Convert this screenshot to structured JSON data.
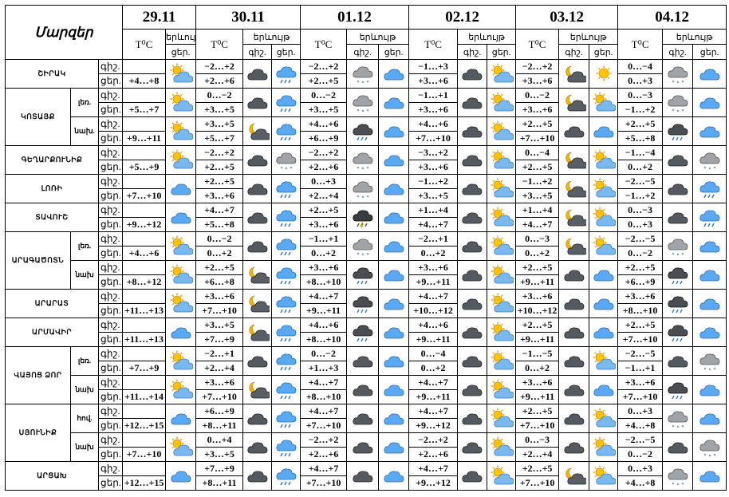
{
  "header": {
    "region_label": "Մարզեր",
    "temp_label": "T⁰C",
    "phenomenon_label": "երևույթ",
    "night_label": "գիշ.",
    "day_label": "ցեր.",
    "dates": [
      "29.11",
      "30.11",
      "01.12",
      "02.12",
      "03.12",
      "04.12"
    ]
  },
  "regions": [
    {
      "name": "ՇԻՐԱԿ",
      "zones": [
        {
          "day_first": "+4…+8",
          "temps": [
            [
              "−2…+2",
              "+2…+6"
            ],
            [
              "−2…+2",
              "+2…+5"
            ],
            [
              "−1…+3",
              "+3…+6"
            ],
            [
              "−2…+2",
              "+3…+6"
            ],
            [
              "0…−4",
              "0…+3"
            ]
          ]
        }
      ]
    },
    {
      "name": "ԿՈՏԱՅՔ",
      "zones": [
        {
          "name": "լեռ.",
          "day_first": "+5…+7",
          "temps": [
            [
              "0…−2",
              "+3…+5"
            ],
            [
              "0…−2",
              "+3…+5"
            ],
            [
              "−1…+1",
              "+3…+6"
            ],
            [
              "0…−2",
              "+3…+6"
            ],
            [
              "0…−3",
              "−1…+2"
            ]
          ]
        },
        {
          "name": "նախ.",
          "day_first": "+9…+11",
          "temps": [
            [
              "+3…+5",
              "+5…+7"
            ],
            [
              "+4…+6",
              "+6…+9"
            ],
            [
              "+4…+6",
              "+7…+10"
            ],
            [
              "+2…+5",
              "+7…+10"
            ],
            [
              "+2…+5",
              "+5…+8"
            ]
          ]
        }
      ]
    },
    {
      "name": "ԳԵՂԱՐՔՈՒՆԻՔ",
      "zones": [
        {
          "day_first": "+5…+9",
          "temps": [
            [
              "−2…+2",
              "+2…+5"
            ],
            [
              "−2…+2",
              "+2…+6"
            ],
            [
              "−3…+2",
              "+3…+6"
            ],
            [
              "0…−4",
              "+2…+5"
            ],
            [
              "−1…−4",
              "0…+2"
            ]
          ]
        }
      ]
    },
    {
      "name": "ԼՈՌԻ",
      "zones": [
        {
          "day_first": "+7…+10",
          "temps": [
            [
              "+2…+5",
              "+3…+6"
            ],
            [
              "0…+3",
              "+2…+4"
            ],
            [
              "−1…+2",
              "+3…+5"
            ],
            [
              "−1…+2",
              "+3…+5"
            ],
            [
              "−2…−5",
              "−1…+2"
            ]
          ]
        }
      ]
    },
    {
      "name": "ՏԱՎՈՒՇ",
      "zones": [
        {
          "day_first": "+9…+12",
          "temps": [
            [
              "+4…+7",
              "+5…+8"
            ],
            [
              "+2…+5",
              "+3…+6"
            ],
            [
              "+1…+4",
              "+4…+7"
            ],
            [
              "+1…+4",
              "+4…+7"
            ],
            [
              "0…−3",
              "0…+3"
            ]
          ]
        }
      ]
    },
    {
      "name": "ԱՐԱԳԱԾՈՏՆ",
      "zones": [
        {
          "name": "լեռ.",
          "day_first": "+4…+6",
          "temps": [
            [
              "0…−2",
              "0…+2"
            ],
            [
              "−1…+1",
              "0…+2"
            ],
            [
              "−2…+1",
              "0…+2"
            ],
            [
              "0…−3",
              "0…+2"
            ],
            [
              "−2…−5",
              "0…−2"
            ]
          ]
        },
        {
          "name": "նախ",
          "day_first": "+8…+12",
          "temps": [
            [
              "+2…+5",
              "+6…+8"
            ],
            [
              "+3…+6",
              "+8…+10"
            ],
            [
              "+3…+6",
              "+9…+11"
            ],
            [
              "+2…+5",
              "+9…+11"
            ],
            [
              "+2…+5",
              "+6…+9"
            ]
          ]
        }
      ]
    },
    {
      "name": "ԱՐԱՐԱՏ",
      "zones": [
        {
          "day_first": "+11…+13",
          "temps": [
            [
              "+3…+6",
              "+7…+10"
            ],
            [
              "+4…+7",
              "+9…+11"
            ],
            [
              "+4…+7",
              "+10…+12"
            ],
            [
              "+3…+6",
              "+10…+12"
            ],
            [
              "+3…+6",
              "+8…+10"
            ]
          ]
        }
      ]
    },
    {
      "name": "ԱՐՄԱՎԻՐ",
      "zones": [
        {
          "day_first": "+11…+13",
          "temps": [
            [
              "+3…+5",
              "+7…+9"
            ],
            [
              "+4…+6",
              "+8…+10"
            ],
            [
              "+4…+6",
              "+9…+11"
            ],
            [
              "+2…+5",
              "+9…+11"
            ],
            [
              "+2…+5",
              "+7…+10"
            ]
          ]
        }
      ]
    },
    {
      "name": "ՎԱՅՈՑ ՁՈՐ",
      "zones": [
        {
          "name": "լեռ.",
          "day_first": "+7…+9",
          "temps": [
            [
              "−2…+1",
              "+2…+4"
            ],
            [
              "0…−2",
              "+1…+3"
            ],
            [
              "0…−4",
              "0…+2"
            ],
            [
              "−1…−5",
              "0…+2"
            ],
            [
              "−2…−5",
              "−1…+1"
            ]
          ]
        },
        {
          "name": "նախ",
          "day_first": "+11…+14",
          "temps": [
            [
              "+3…+6",
              "+7…+10"
            ],
            [
              "+4…+7",
              "+8…+10"
            ],
            [
              "+4…+7",
              "+9…+11"
            ],
            [
              "+3…+6",
              "+9…+11"
            ],
            [
              "+3…+6",
              "+7…+10"
            ]
          ]
        }
      ]
    },
    {
      "name": "ՍՅՈՒՆԻՔ",
      "zones": [
        {
          "name": "հով.",
          "day_first": "+12…+15",
          "temps": [
            [
              "+6…+9",
              "+8…+11"
            ],
            [
              "+4…+7",
              "+7…+10"
            ],
            [
              "+4…+7",
              "+9…+12"
            ],
            [
              "+2…+5",
              "+7…+10"
            ],
            [
              "0…+3",
              "+4…+8"
            ]
          ]
        },
        {
          "name": "նախ",
          "day_first": "+7…+10",
          "temps": [
            [
              "0…+4",
              "+3…+5"
            ],
            [
              "−2…+2",
              "+2…+6"
            ],
            [
              "−2…+2",
              "+2…+6"
            ],
            [
              "0…−3",
              "+2…+4"
            ],
            [
              "−2…−5",
              "0…−2"
            ]
          ]
        }
      ]
    },
    {
      "name": "ԱՐՑԱԽ",
      "zones": [
        {
          "day_first": "+12…+15",
          "temps": [
            [
              "+7…+9",
              "+8…+11"
            ],
            [
              "+4…+7",
              "+7…+10"
            ],
            [
              "+4…+7",
              "+9…+12"
            ],
            [
              "+2…+5",
              "+7…+10"
            ],
            [
              "0…+3",
              "+4…+8"
            ]
          ]
        }
      ]
    }
  ]
}
